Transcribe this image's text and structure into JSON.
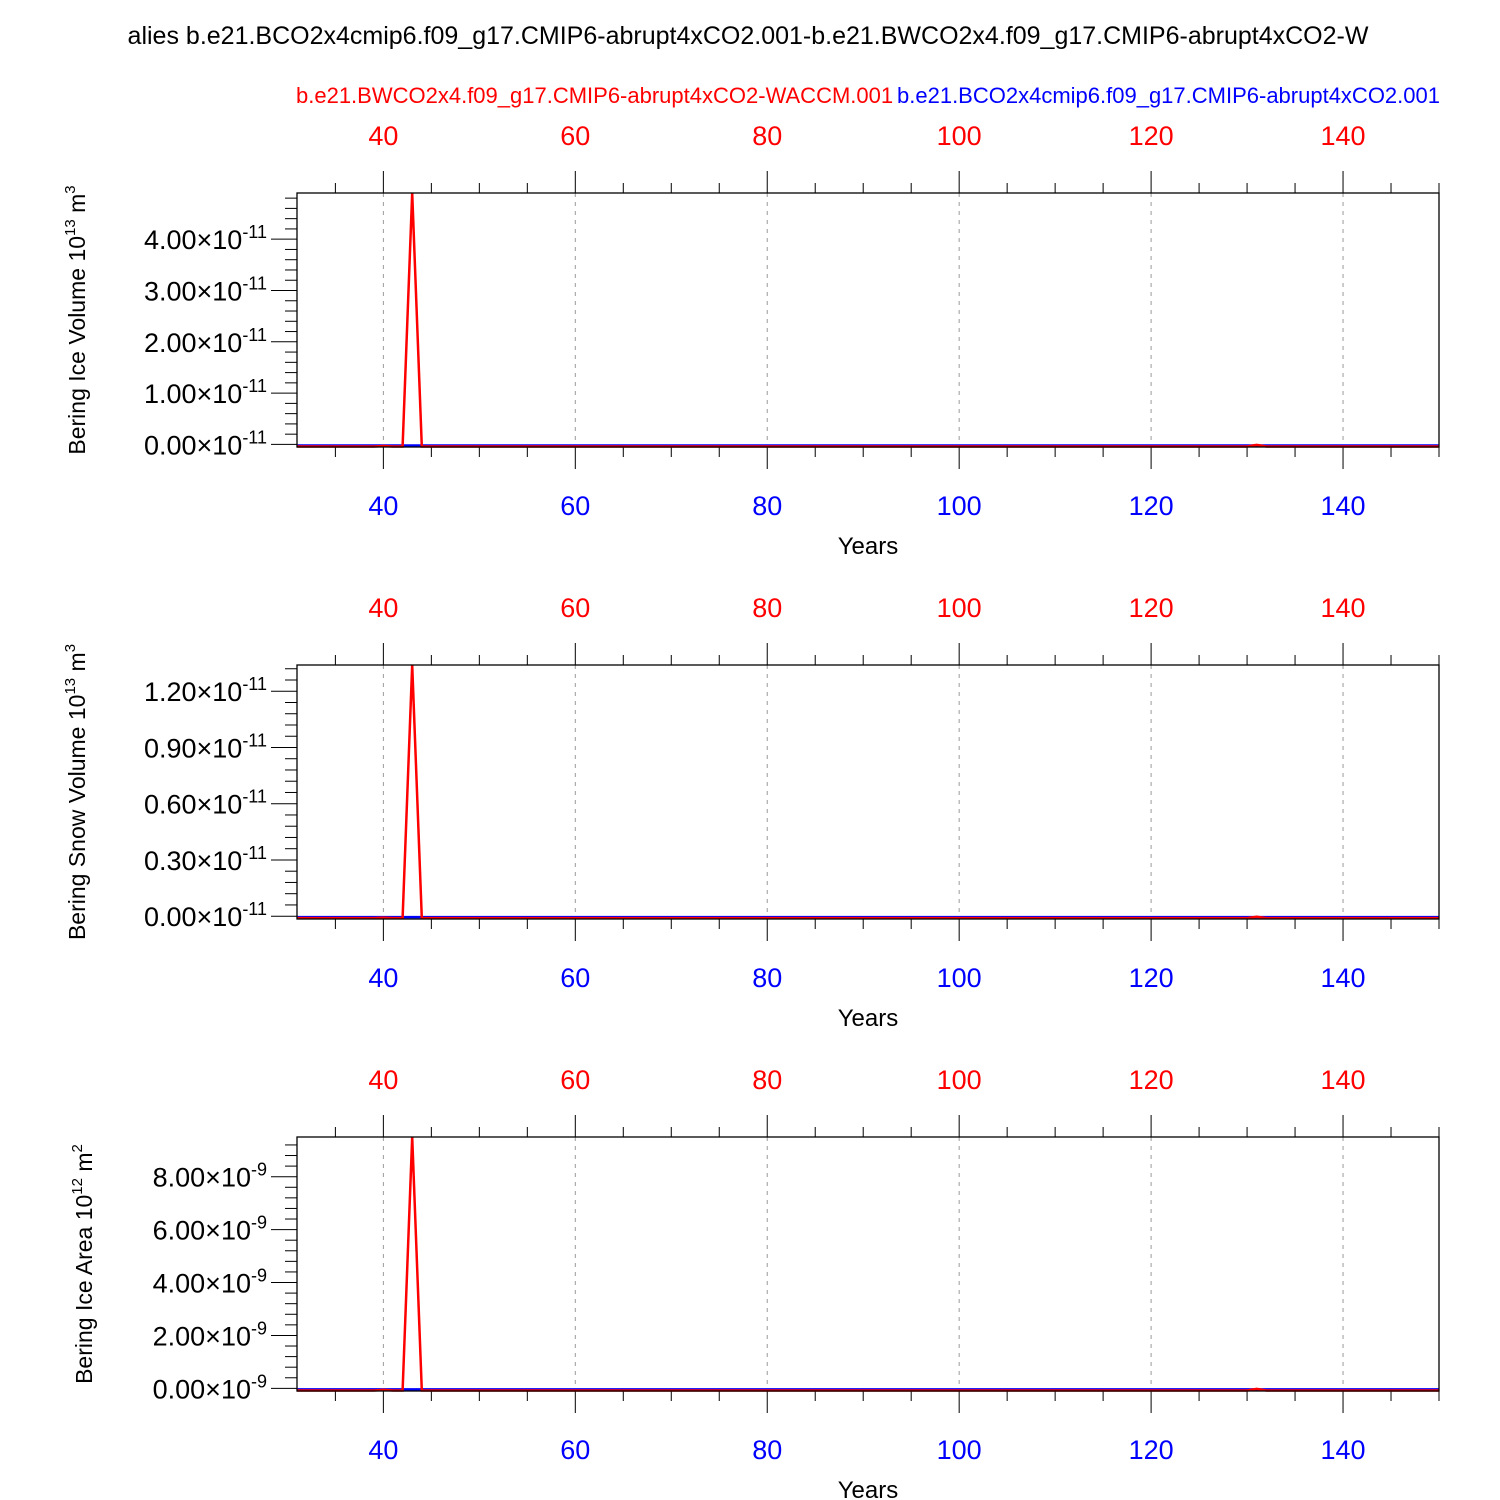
{
  "title": "alies b.e21.BCO2x4cmip6.f09_g17.CMIP6-abrupt4xCO2.001-b.e21.BWCO2x4.f09_g17.CMIP6-abrupt4xCO2-W",
  "legend": {
    "red_label": "b.e21.BWCO2x4.f09_g17.CMIP6-abrupt4xCO2-WACCM.001",
    "blue_label": "b.e21.BCO2x4cmip6.f09_g17.CMIP6-abrupt4xCO2.001"
  },
  "colors": {
    "red": "#ff0000",
    "blue": "#0000ff",
    "axis": "#000000",
    "grid": "#9a9a9a"
  },
  "chart_data": [
    {
      "type": "line",
      "ylabel": "Bering Ice Volume 10^13 m^3",
      "ylabel_main": "Bering Ice Volume 10",
      "ylabel_exp": "13",
      "ylabel_unit": " m",
      "ylabel_unit_exp": "3",
      "xlabel": "Years",
      "xlim": [
        31,
        150
      ],
      "ylim": [
        -0.05,
        4.9
      ],
      "scale_label": "10",
      "scale_exp": "-11",
      "yticks": [
        0,
        1,
        2,
        3,
        4
      ],
      "ytick_labels": [
        "0.00",
        "1.00",
        "2.00",
        "3.00",
        "4.00"
      ],
      "xticks": [
        40,
        60,
        80,
        100,
        120,
        140
      ],
      "xtick_labels": [
        "40",
        "60",
        "80",
        "100",
        "120",
        "140"
      ],
      "series": [
        {
          "name": "b.e21.BCO2x4cmip6.f09_g17.CMIP6-abrupt4xCO2.001",
          "color": "blue",
          "x": [
            31,
            150
          ],
          "y": [
            -0.02,
            -0.02
          ]
        },
        {
          "name": "b.e21.BWCO2x4.f09_g17.CMIP6-abrupt4xCO2-WACCM.001",
          "color": "red",
          "x": [
            31,
            39,
            40,
            41,
            42,
            43,
            44,
            45,
            130,
            131,
            132,
            150
          ],
          "y": [
            -0.04,
            -0.04,
            -0.03,
            -0.04,
            -0.04,
            4.9,
            -0.04,
            -0.04,
            -0.04,
            -0.01,
            -0.04,
            -0.04
          ]
        }
      ]
    },
    {
      "type": "line",
      "ylabel": "Bering Snow Volume 10^13 m^3",
      "ylabel_main": "Bering Snow Volume 10",
      "ylabel_exp": "13",
      "ylabel_unit": " m",
      "ylabel_unit_exp": "3",
      "xlabel": "Years",
      "xlim": [
        31,
        150
      ],
      "ylim": [
        -0.015,
        1.34
      ],
      "scale_label": "10",
      "scale_exp": "-11",
      "yticks": [
        0,
        0.3,
        0.6,
        0.9,
        1.2
      ],
      "ytick_labels": [
        "0.00",
        "0.30",
        "0.60",
        "0.90",
        "1.20"
      ],
      "xticks": [
        40,
        60,
        80,
        100,
        120,
        140
      ],
      "xtick_labels": [
        "40",
        "60",
        "80",
        "100",
        "120",
        "140"
      ],
      "series": [
        {
          "name": "b.e21.BCO2x4cmip6.f09_g17.CMIP6-abrupt4xCO2.001",
          "color": "blue",
          "x": [
            31,
            150
          ],
          "y": [
            -0.005,
            -0.005
          ]
        },
        {
          "name": "b.e21.BWCO2x4.f09_g17.CMIP6-abrupt4xCO2-WACCM.001",
          "color": "red",
          "x": [
            31,
            39,
            40,
            41,
            42,
            43,
            44,
            45,
            130,
            131,
            132,
            150
          ],
          "y": [
            -0.01,
            -0.01,
            -0.008,
            -0.01,
            -0.01,
            1.34,
            -0.01,
            -0.01,
            -0.01,
            -0.003,
            -0.01,
            -0.01
          ]
        }
      ]
    },
    {
      "type": "line",
      "ylabel": "Bering Ice Area 10^12 m^2",
      "ylabel_main": "Bering Ice Area 10",
      "ylabel_exp": "12",
      "ylabel_unit": " m",
      "ylabel_unit_exp": "2",
      "xlabel": "Years",
      "xlim": [
        31,
        150
      ],
      "ylim": [
        -0.1,
        9.5
      ],
      "scale_label": "10",
      "scale_exp": "-9",
      "yticks": [
        0,
        2,
        4,
        6,
        8
      ],
      "ytick_labels": [
        "0.00",
        "2.00",
        "4.00",
        "6.00",
        "8.00"
      ],
      "xticks": [
        40,
        60,
        80,
        100,
        120,
        140
      ],
      "xtick_labels": [
        "40",
        "60",
        "80",
        "100",
        "120",
        "140"
      ],
      "series": [
        {
          "name": "b.e21.BCO2x4cmip6.f09_g17.CMIP6-abrupt4xCO2.001",
          "color": "blue",
          "x": [
            31,
            150
          ],
          "y": [
            -0.04,
            -0.04
          ]
        },
        {
          "name": "b.e21.BWCO2x4.f09_g17.CMIP6-abrupt4xCO2-WACCM.001",
          "color": "red",
          "x": [
            31,
            39,
            40,
            41,
            42,
            43,
            44,
            45,
            130,
            131,
            132,
            150
          ],
          "y": [
            -0.08,
            -0.08,
            -0.06,
            -0.08,
            -0.08,
            9.5,
            -0.08,
            -0.08,
            -0.08,
            -0.02,
            -0.08,
            -0.08
          ]
        }
      ]
    }
  ]
}
